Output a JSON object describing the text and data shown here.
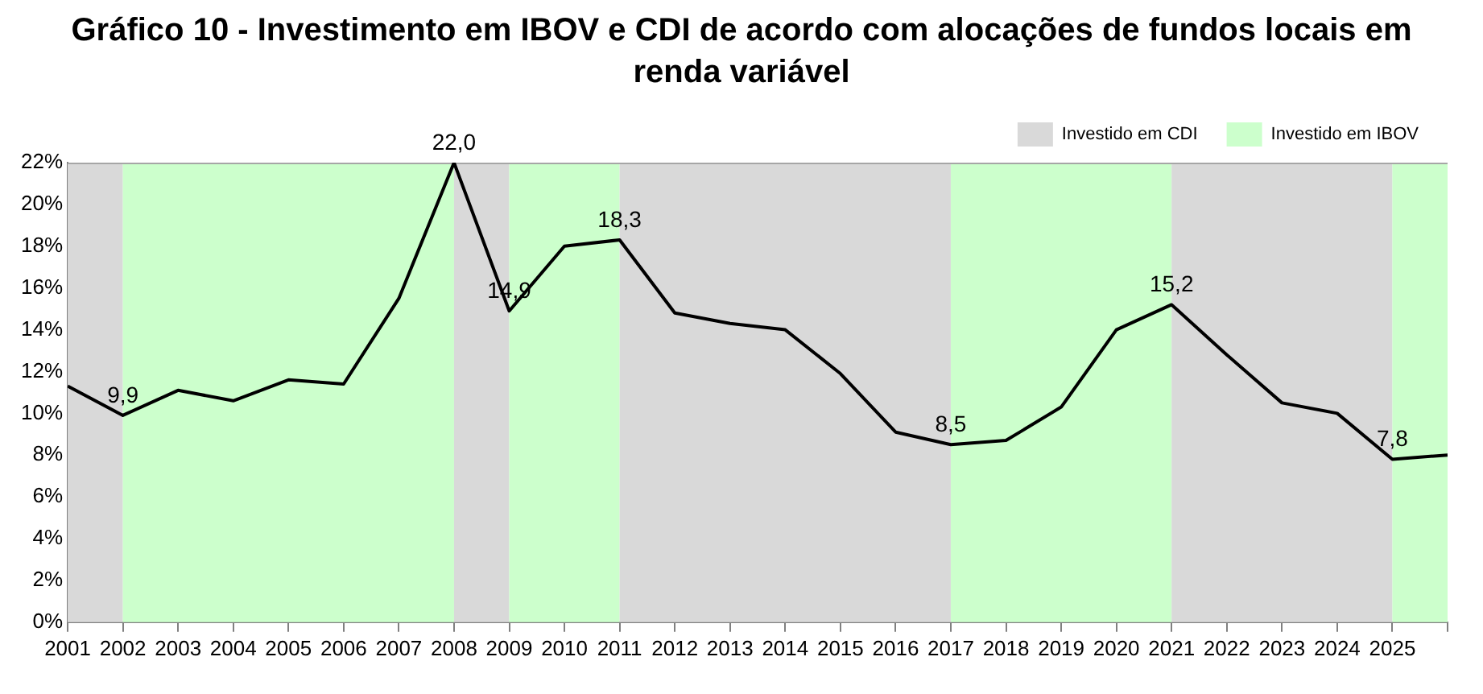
{
  "chart_data": {
    "type": "line",
    "title": "Gráfico 10 - Investimento em IBOV e CDI de acordo com alocações de fundos locais em renda variável",
    "x": [
      2001,
      2002,
      2003,
      2004,
      2005,
      2006,
      2007,
      2008,
      2009,
      2010,
      2011,
      2012,
      2013,
      2014,
      2015,
      2016,
      2017,
      2018,
      2019,
      2020,
      2021,
      2022,
      2023,
      2024,
      2025,
      2026
    ],
    "series": [
      {
        "color": "#000000",
        "values": [
          11.3,
          9.9,
          11.1,
          10.6,
          11.6,
          11.4,
          15.5,
          22.0,
          14.9,
          18.0,
          18.3,
          14.8,
          14.3,
          14.0,
          11.9,
          9.1,
          8.5,
          8.7,
          10.3,
          14.0,
          15.2,
          12.8,
          10.5,
          10.0,
          7.8,
          8.0
        ],
        "value_labels": [
          null,
          "9,9",
          null,
          null,
          null,
          null,
          null,
          "22,0",
          "14,9",
          null,
          "18,3",
          null,
          null,
          null,
          null,
          null,
          "8,5",
          null,
          null,
          null,
          "15,2",
          null,
          null,
          null,
          "7,8",
          null
        ]
      }
    ],
    "xlim": [
      2001,
      2026
    ],
    "xticks": [
      2001,
      2002,
      2003,
      2004,
      2005,
      2006,
      2007,
      2008,
      2009,
      2010,
      2011,
      2012,
      2013,
      2014,
      2015,
      2016,
      2017,
      2018,
      2019,
      2020,
      2021,
      2022,
      2023,
      2024,
      2025,
      {
        "value": 2026,
        "label": null
      }
    ],
    "ylim": [
      0,
      22
    ],
    "yticks": [
      {
        "value": 0,
        "label": "0%"
      },
      {
        "value": 2,
        "label": "2%"
      },
      {
        "value": 4,
        "label": "4%"
      },
      {
        "value": 6,
        "label": "6%"
      },
      {
        "value": 8,
        "label": "8%"
      },
      {
        "value": 10,
        "label": "10%"
      },
      {
        "value": 12,
        "label": "12%"
      },
      {
        "value": 14,
        "label": "14%"
      },
      {
        "value": 16,
        "label": "16%"
      },
      {
        "value": 18,
        "label": "18%"
      },
      {
        "value": 20,
        "label": "20%"
      },
      {
        "value": 22,
        "label": "22%"
      }
    ],
    "bands": [
      {
        "axis": "x",
        "from": 2001,
        "to": 2002,
        "label": "Investido em CDI",
        "color": "#d9d9d9"
      },
      {
        "axis": "x",
        "from": 2002,
        "to": 2008,
        "label": "Investido em IBOV",
        "color": "#ccffcc"
      },
      {
        "axis": "x",
        "from": 2008,
        "to": 2009,
        "color": "#d9d9d9"
      },
      {
        "axis": "x",
        "from": 2009,
        "to": 2011,
        "color": "#ccffcc"
      },
      {
        "axis": "x",
        "from": 2011,
        "to": 2017,
        "color": "#d9d9d9"
      },
      {
        "axis": "x",
        "from": 2017,
        "to": 2021,
        "color": "#ccffcc"
      },
      {
        "axis": "x",
        "from": 2021,
        "to": 2025,
        "color": "#d9d9d9"
      },
      {
        "axis": "x",
        "from": 2025,
        "to": 2026,
        "color": "#ccffcc"
      }
    ],
    "grid": false,
    "legend": "top right",
    "marker": "none",
    "line_style": "solid"
  }
}
